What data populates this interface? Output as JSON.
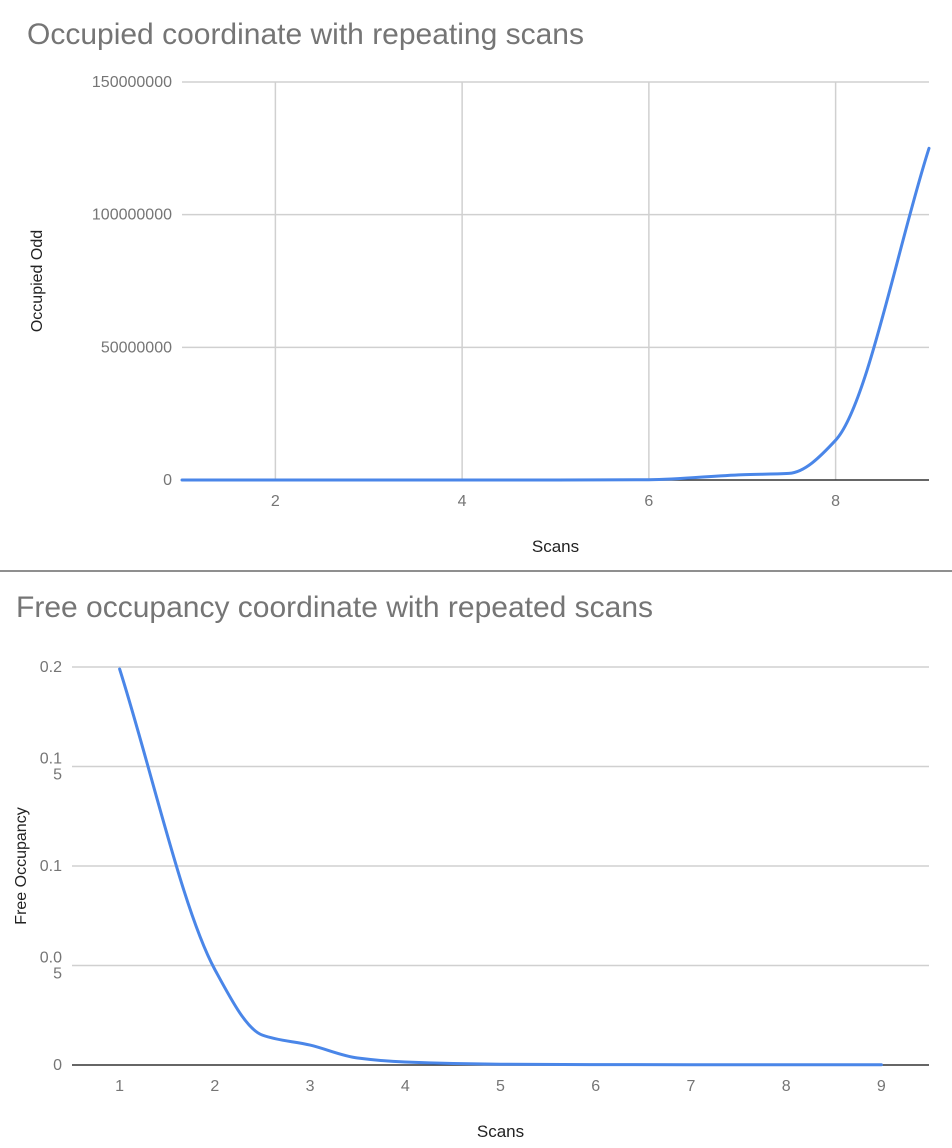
{
  "chart_data": [
    {
      "type": "line",
      "title": "Occupied coordinate with repeating scans",
      "xlabel": "Scans",
      "ylabel": "Occupied Odd",
      "xlim": [
        1,
        9
      ],
      "ylim": [
        0,
        150000000
      ],
      "x_ticks": [
        "2",
        "4",
        "6",
        "8"
      ],
      "y_ticks": [
        "0",
        "50000000",
        "100000000",
        "150000000"
      ],
      "grid": true,
      "legend": "none",
      "series": [
        {
          "color": "#4a86e8",
          "x": [
            1,
            2,
            3,
            4,
            5,
            6,
            7,
            7.5,
            8,
            9
          ],
          "y": [
            0,
            0,
            0,
            0,
            0,
            100000,
            2000000,
            2500000,
            15000000,
            125000000
          ]
        }
      ]
    },
    {
      "type": "line",
      "title": "Free occupancy coordinate with repeated scans",
      "xlabel": "Scans",
      "ylabel": "Free Occupancy",
      "xlim": [
        0.5,
        9.5
      ],
      "ylim": [
        0,
        0.2
      ],
      "x_ticks": [
        "1",
        "2",
        "3",
        "4",
        "5",
        "6",
        "7",
        "8",
        "9"
      ],
      "y_ticks": [
        "0",
        "0.0\n5",
        "0.1",
        "0.1\n5",
        "0.2"
      ],
      "grid": true,
      "legend": "none",
      "series": [
        {
          "color": "#4a86e8",
          "x": [
            1,
            2,
            2.5,
            3,
            3.5,
            4,
            5,
            6,
            7,
            8,
            9
          ],
          "y": [
            0.199,
            0.048,
            0.015,
            0.01,
            0.0035,
            0.0015,
            0.0004,
            0.0002,
            0.0001,
            0.0001,
            0.0001
          ]
        }
      ]
    }
  ]
}
